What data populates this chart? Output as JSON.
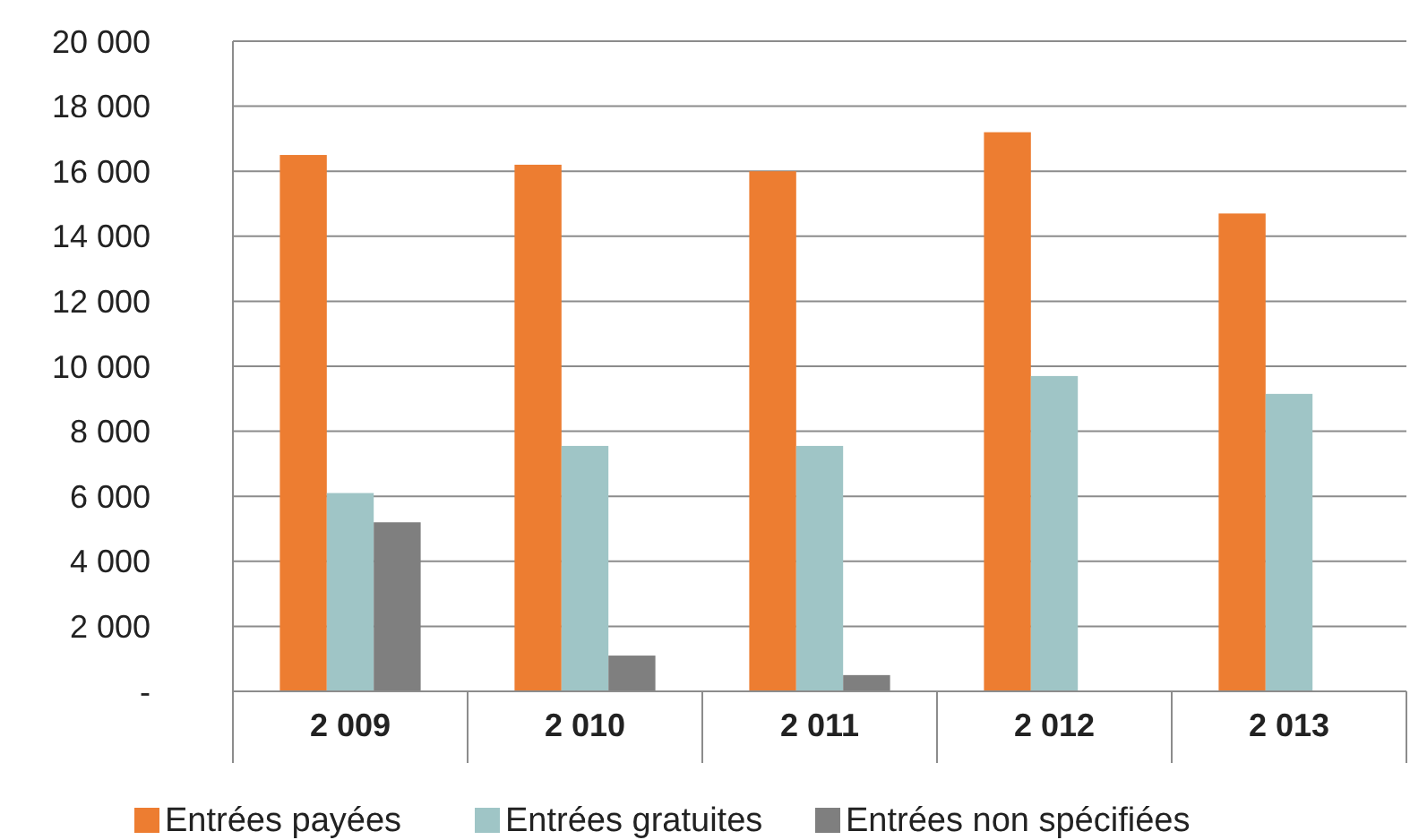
{
  "chart_data": {
    "type": "bar",
    "categories": [
      "2 009",
      "2 010",
      "2 011",
      "2 012",
      "2 013"
    ],
    "series": [
      {
        "name": "Entrées payées",
        "color": "#ed7d31",
        "values": [
          16500,
          16200,
          16000,
          17200,
          14700
        ]
      },
      {
        "name": "Entrées gratuites",
        "color": "#9fc5c6",
        "values": [
          6100,
          7550,
          7550,
          9700,
          9150
        ]
      },
      {
        "name": "Entrées non spécifiées",
        "color": "#7f7f7f",
        "values": [
          5200,
          1100,
          500,
          null,
          null
        ]
      }
    ],
    "ylim": [
      0,
      20000
    ],
    "yticks": [
      {
        "value": 0,
        "label": "-"
      },
      {
        "value": 2000,
        "label": "2 000"
      },
      {
        "value": 4000,
        "label": "4 000"
      },
      {
        "value": 6000,
        "label": "6 000"
      },
      {
        "value": 8000,
        "label": "8 000"
      },
      {
        "value": 10000,
        "label": "10 000"
      },
      {
        "value": 12000,
        "label": "12 000"
      },
      {
        "value": 14000,
        "label": "14 000"
      },
      {
        "value": 16000,
        "label": "16 000"
      },
      {
        "value": 18000,
        "label": "18 000"
      },
      {
        "value": 20000,
        "label": "20 000"
      }
    ],
    "grid": "y",
    "legend": "bottom"
  }
}
